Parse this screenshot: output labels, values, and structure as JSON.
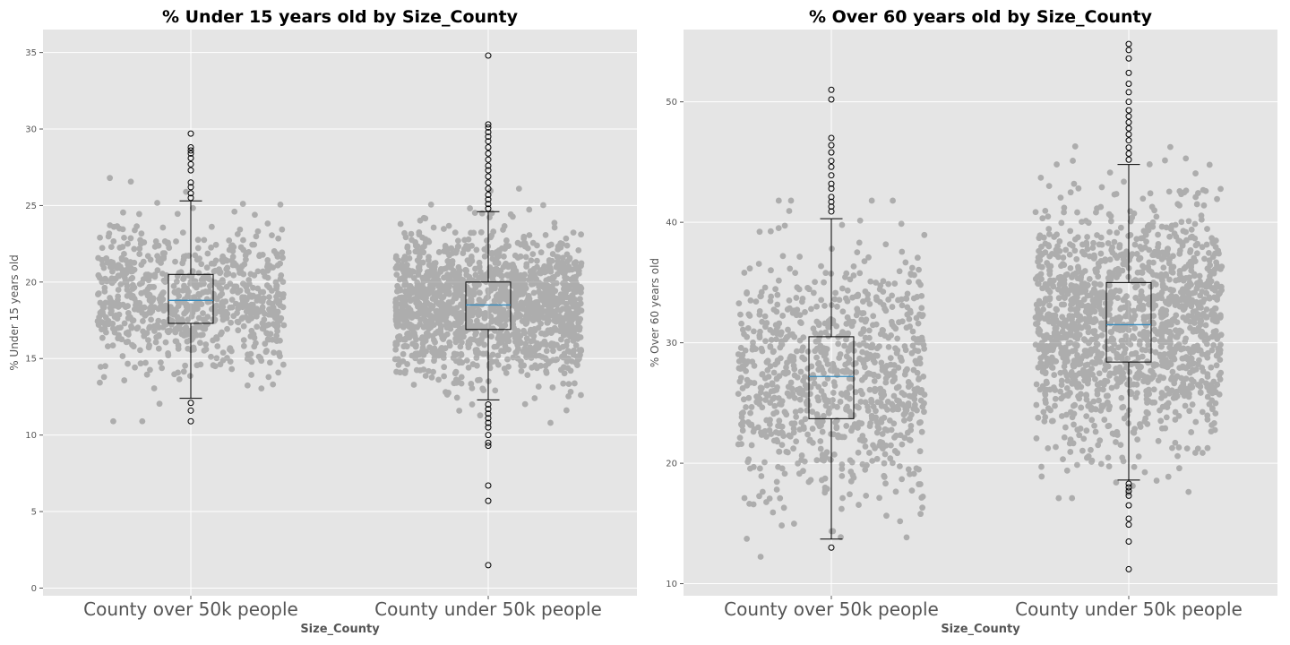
{
  "chart_data": [
    {
      "type": "boxplot_strip",
      "title": "% Under 15 years old by Size_County",
      "xlabel": "Size_County",
      "ylabel": "% Under 15 years old",
      "ylim": [
        -0.5,
        36.5
      ],
      "yticks": [
        0,
        5,
        10,
        15,
        20,
        25,
        30,
        35
      ],
      "grid": true,
      "categories": [
        "County over 50k people",
        "County under 50k people"
      ],
      "boxes": [
        {
          "q1": 17.3,
          "median": 18.8,
          "q3": 20.5,
          "whisker_low": 12.4,
          "whisker_high": 25.3,
          "outliers": [
            10.9,
            11.6,
            12.1,
            25.5,
            25.8,
            26.2,
            26.5,
            27.3,
            27.7,
            28.1,
            28.4,
            28.6,
            28.8,
            29.7
          ]
        },
        {
          "q1": 16.9,
          "median": 18.5,
          "q3": 20.0,
          "whisker_low": 12.3,
          "whisker_high": 24.6,
          "outliers": [
            1.5,
            5.7,
            6.7,
            9.3,
            9.5,
            10.0,
            10.5,
            10.8,
            11.1,
            11.4,
            11.7,
            12.0,
            24.8,
            25.1,
            25.4,
            25.7,
            26.1,
            26.5,
            26.9,
            27.3,
            27.6,
            28.0,
            28.4,
            28.8,
            29.2,
            29.5,
            29.8,
            30.1,
            30.3,
            34.8
          ]
        }
      ]
    },
    {
      "type": "boxplot_strip",
      "title": "% Over 60 years old by Size_County",
      "xlabel": "Size_County",
      "ylabel": "% Over 60 years old",
      "ylim": [
        9,
        56
      ],
      "yticks": [
        10,
        20,
        30,
        40,
        50
      ],
      "grid": true,
      "categories": [
        "County over 50k people",
        "County under 50k people"
      ],
      "boxes": [
        {
          "q1": 23.7,
          "median": 27.2,
          "q3": 30.5,
          "whisker_low": 13.7,
          "whisker_high": 40.3,
          "outliers": [
            13.0,
            40.9,
            41.3,
            41.7,
            42.1,
            42.8,
            43.2,
            43.9,
            44.6,
            45.1,
            45.8,
            46.4,
            47.0,
            50.2,
            51.0
          ]
        },
        {
          "q1": 28.4,
          "median": 31.5,
          "q3": 35.0,
          "whisker_low": 18.6,
          "whisker_high": 44.8,
          "outliers": [
            11.2,
            13.5,
            14.9,
            15.4,
            16.5,
            17.3,
            17.7,
            18.0,
            18.3,
            45.2,
            45.7,
            46.2,
            46.8,
            47.3,
            47.8,
            48.3,
            48.8,
            49.3,
            50.0,
            50.8,
            51.5,
            52.4,
            53.6,
            54.3,
            54.8
          ]
        }
      ]
    }
  ]
}
